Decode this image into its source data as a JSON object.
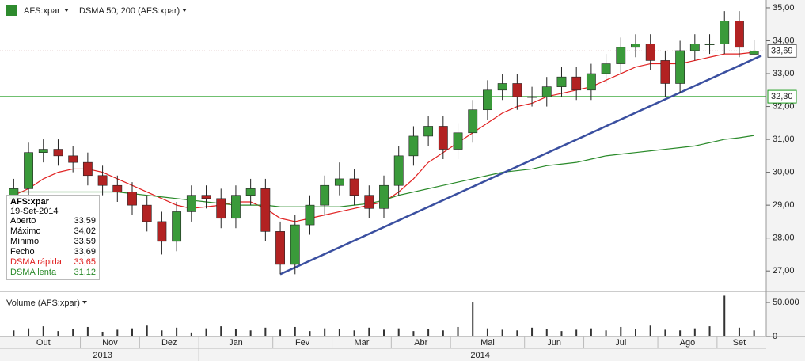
{
  "chart_data": {
    "type": "candlestick",
    "symbol": "AFS:xpar",
    "indicator": "DSMA 50; 200 (AFS:xpar)",
    "volume_title": "Volume (AFS:xpar)",
    "categories": [
      "Out",
      "Out",
      "Out",
      "Out",
      "Out",
      "Nov",
      "Nov",
      "Nov",
      "Nov",
      "Dez",
      "Dez",
      "Dez",
      "Dez",
      "Jan",
      "Jan",
      "Jan",
      "Jan",
      "Jan",
      "Fev",
      "Fev",
      "Fev",
      "Fev",
      "Mar",
      "Mar",
      "Mar",
      "Mar",
      "Abr",
      "Abr",
      "Abr",
      "Abr",
      "Mai",
      "Mai",
      "Mai",
      "Mai",
      "Mai",
      "Jun",
      "Jun",
      "Jun",
      "Jun",
      "Jul",
      "Jul",
      "Jul",
      "Jul",
      "Jul",
      "Ago",
      "Ago",
      "Ago",
      "Ago",
      "Set",
      "Set",
      "Set"
    ],
    "years": [
      "2013",
      "2013",
      "2013",
      "2013",
      "2013",
      "2013",
      "2013",
      "2013",
      "2013",
      "2013",
      "2013",
      "2013",
      "2013",
      "2014",
      "2014",
      "2014",
      "2014",
      "2014",
      "2014",
      "2014",
      "2014",
      "2014",
      "2014",
      "2014",
      "2014",
      "2014",
      "2014",
      "2014",
      "2014",
      "2014",
      "2014",
      "2014",
      "2014",
      "2014",
      "2014",
      "2014",
      "2014",
      "2014",
      "2014",
      "2014",
      "2014",
      "2014",
      "2014",
      "2014",
      "2014",
      "2014",
      "2014",
      "2014",
      "2014",
      "2014",
      "2014"
    ],
    "open": [
      29.2,
      29.5,
      30.6,
      30.7,
      30.5,
      30.3,
      29.9,
      29.6,
      29.4,
      29.0,
      28.5,
      27.9,
      28.8,
      29.3,
      29.2,
      28.6,
      29.3,
      29.5,
      28.2,
      27.2,
      28.4,
      29.0,
      29.6,
      29.8,
      29.3,
      28.9,
      29.6,
      30.5,
      31.1,
      31.4,
      30.7,
      31.2,
      31.9,
      32.5,
      32.7,
      32.3,
      32.3,
      32.6,
      32.9,
      32.5,
      33.0,
      33.3,
      33.8,
      33.9,
      33.4,
      32.7,
      33.7,
      33.9,
      33.9,
      34.6,
      33.59
    ],
    "high": [
      29.8,
      30.9,
      31.0,
      31.0,
      30.8,
      30.6,
      30.2,
      29.9,
      29.7,
      29.3,
      28.8,
      29.1,
      29.6,
      29.6,
      29.5,
      29.6,
      29.8,
      29.8,
      28.5,
      28.7,
      29.3,
      29.9,
      30.3,
      30.1,
      29.6,
      29.9,
      30.8,
      31.4,
      31.7,
      31.7,
      31.5,
      32.2,
      32.8,
      33.0,
      33.0,
      32.6,
      32.9,
      33.2,
      33.2,
      33.3,
      33.6,
      34.1,
      34.2,
      34.2,
      33.7,
      34.0,
      34.2,
      34.2,
      34.9,
      34.9,
      34.02
    ],
    "low": [
      28.9,
      29.2,
      30.3,
      30.2,
      30.0,
      29.6,
      29.3,
      29.1,
      28.7,
      28.2,
      27.5,
      27.6,
      28.5,
      28.9,
      28.3,
      28.3,
      29.0,
      27.9,
      26.9,
      26.9,
      28.1,
      28.7,
      29.3,
      29.0,
      28.6,
      28.6,
      29.3,
      30.2,
      30.8,
      30.4,
      30.4,
      30.9,
      31.6,
      32.2,
      31.9,
      32.0,
      32.0,
      32.3,
      32.2,
      32.2,
      32.7,
      33.0,
      33.5,
      33.1,
      32.3,
      32.4,
      33.4,
      33.6,
      33.6,
      33.5,
      33.59
    ],
    "close": [
      29.5,
      30.6,
      30.7,
      30.5,
      30.3,
      29.9,
      29.6,
      29.4,
      29.0,
      28.5,
      27.9,
      28.8,
      29.3,
      29.2,
      28.6,
      29.3,
      29.5,
      28.2,
      27.2,
      28.4,
      29.0,
      29.6,
      29.8,
      29.3,
      28.9,
      29.6,
      30.5,
      31.1,
      31.4,
      30.7,
      31.2,
      31.9,
      32.5,
      32.7,
      32.3,
      32.3,
      32.6,
      32.9,
      32.5,
      33.0,
      33.3,
      33.8,
      33.9,
      33.4,
      32.7,
      33.7,
      33.9,
      33.9,
      34.6,
      33.8,
      33.69
    ],
    "volume": [
      9000,
      12000,
      15000,
      8000,
      11000,
      14000,
      7000,
      10000,
      12000,
      16000,
      9000,
      13000,
      6000,
      12000,
      15000,
      11000,
      9000,
      13000,
      10000,
      14000,
      8000,
      12000,
      11000,
      9000,
      13000,
      10000,
      12000,
      8000,
      11000,
      9000,
      14000,
      50000,
      12000,
      10000,
      9000,
      13000,
      11000,
      8000,
      10000,
      12000,
      9000,
      14000,
      11000,
      16000,
      10000,
      9000,
      12000,
      15000,
      60000,
      13000,
      9000
    ],
    "up_color": "#3a9a3a",
    "down_color": "#b22222",
    "series": [
      {
        "name": "DSMA rápida",
        "color": "#e02020",
        "values": [
          29.3,
          29.5,
          29.8,
          30.0,
          30.1,
          30.1,
          30.0,
          29.8,
          29.6,
          29.4,
          29.2,
          29.0,
          28.9,
          28.95,
          29.0,
          29.1,
          29.1,
          28.9,
          28.6,
          28.5,
          28.6,
          28.7,
          28.8,
          28.9,
          29.0,
          29.1,
          29.4,
          29.8,
          30.3,
          30.6,
          30.9,
          31.2,
          31.5,
          31.8,
          32.0,
          32.1,
          32.3,
          32.4,
          32.5,
          32.6,
          32.8,
          33.0,
          33.2,
          33.3,
          33.3,
          33.3,
          33.4,
          33.5,
          33.6,
          33.6,
          33.65
        ]
      },
      {
        "name": "DSMA lenta",
        "color": "#2a8a2a",
        "values": [
          29.4,
          29.4,
          29.4,
          29.4,
          29.4,
          29.4,
          29.4,
          29.4,
          29.35,
          29.3,
          29.25,
          29.2,
          29.15,
          29.1,
          29.05,
          29.0,
          29.0,
          29.0,
          28.95,
          28.95,
          28.95,
          28.95,
          28.95,
          29.0,
          29.05,
          29.15,
          29.3,
          29.4,
          29.5,
          29.6,
          29.7,
          29.8,
          29.9,
          30.0,
          30.05,
          30.1,
          30.2,
          30.25,
          30.3,
          30.4,
          30.5,
          30.55,
          30.6,
          30.65,
          30.7,
          30.75,
          30.8,
          30.9,
          31.0,
          31.05,
          31.12
        ]
      }
    ],
    "trendline": {
      "from": 26.9,
      "to": 33.55,
      "color": "#3a4fa0"
    },
    "hline": {
      "value": 32.3,
      "label": "32,30",
      "color": "#1a9a1a"
    },
    "last": {
      "value": 33.69,
      "label": "33,69"
    },
    "ylim": [
      26.74,
      35.24
    ],
    "yticks": [
      {
        "value": 27,
        "label": "27,00"
      },
      {
        "value": 28,
        "label": "28,00"
      },
      {
        "value": 29,
        "label": "29,00"
      },
      {
        "value": 30,
        "label": "30,00"
      },
      {
        "value": 31,
        "label": "31,00"
      },
      {
        "value": 32,
        "label": "32,00"
      },
      {
        "value": 33,
        "label": "33,00"
      },
      {
        "value": 34,
        "label": "34,00"
      },
      {
        "value": 35,
        "label": "35,00"
      }
    ],
    "vlim": [
      0,
      64000
    ],
    "vticks": [
      0,
      {
        "value": 50000,
        "label": "50.000"
      }
    ],
    "info": {
      "symbol": "AFS:xpar",
      "date": "19-Set-2014",
      "rows": [
        {
          "label": "Aberto",
          "value": "33,59"
        },
        {
          "label": "Máximo",
          "value": "34,02"
        },
        {
          "label": "Mínimo",
          "value": "33,59"
        },
        {
          "label": "Fecho",
          "value": "33,69"
        },
        {
          "label": "DSMA rápida",
          "value": "33,65",
          "color": "#e02020"
        },
        {
          "label": "DSMA lenta",
          "value": "31,12",
          "color": "#2a8a2a"
        }
      ]
    }
  }
}
